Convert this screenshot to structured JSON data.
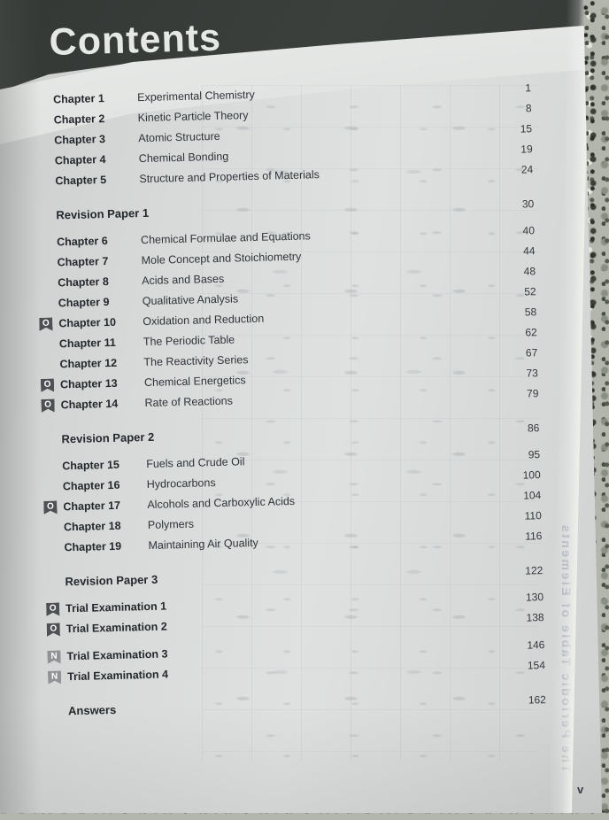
{
  "header": {
    "title": "Contents"
  },
  "page_label": "v",
  "show_through": {
    "vertical_text": "The Periodic Table of Elements"
  },
  "colors": {
    "banner": "#3c403d",
    "banner_text": "#e6e8e5",
    "page": "#d7dad9",
    "granite": "#b2b6ad",
    "badge_o": "#4d5154",
    "badge_n": "#909497",
    "body_text": "#2c3035"
  },
  "toc": {
    "items": [
      {
        "type": "chapter",
        "badge": null,
        "label": "Chapter 1",
        "title": "Experimental Chemistry",
        "page": "1"
      },
      {
        "type": "chapter",
        "badge": null,
        "label": "Chapter 2",
        "title": "Kinetic Particle Theory",
        "page": "8"
      },
      {
        "type": "chapter",
        "badge": null,
        "label": "Chapter 3",
        "title": "Atomic Structure",
        "page": "15"
      },
      {
        "type": "chapter",
        "badge": null,
        "label": "Chapter 4",
        "title": "Chemical Bonding",
        "page": "19"
      },
      {
        "type": "chapter",
        "badge": null,
        "label": "Chapter 5",
        "title": "Structure and Properties of Materials",
        "page": "24"
      },
      {
        "type": "section",
        "badge": null,
        "label": "Revision Paper 1",
        "title": "",
        "page": "30"
      },
      {
        "type": "chapter",
        "badge": null,
        "label": "Chapter 6",
        "title": "Chemical Formulae and Equations",
        "page": "40"
      },
      {
        "type": "chapter",
        "badge": null,
        "label": "Chapter 7",
        "title": "Mole Concept and Stoichiometry",
        "page": "44"
      },
      {
        "type": "chapter",
        "badge": null,
        "label": "Chapter 8",
        "title": "Acids and Bases",
        "page": "48"
      },
      {
        "type": "chapter",
        "badge": null,
        "label": "Chapter 9",
        "title": "Qualitative Analysis",
        "page": "52"
      },
      {
        "type": "chapter",
        "badge": "O",
        "label": "Chapter 10",
        "title": "Oxidation and Reduction",
        "page": "58"
      },
      {
        "type": "chapter",
        "badge": null,
        "label": "Chapter 11",
        "title": "The Periodic Table",
        "page": "62"
      },
      {
        "type": "chapter",
        "badge": null,
        "label": "Chapter 12",
        "title": "The Reactivity Series",
        "page": "67"
      },
      {
        "type": "chapter",
        "badge": "O",
        "label": "Chapter 13",
        "title": "Chemical Energetics",
        "page": "73"
      },
      {
        "type": "chapter",
        "badge": "O",
        "label": "Chapter 14",
        "title": "Rate of Reactions",
        "page": "79"
      },
      {
        "type": "section",
        "badge": null,
        "label": "Revision Paper 2",
        "title": "",
        "page": "86"
      },
      {
        "type": "chapter",
        "badge": null,
        "label": "Chapter 15",
        "title": "Fuels and Crude Oil",
        "page": "95"
      },
      {
        "type": "chapter",
        "badge": null,
        "label": "Chapter 16",
        "title": "Hydrocarbons",
        "page": "100"
      },
      {
        "type": "chapter",
        "badge": "O",
        "label": "Chapter 17",
        "title": "Alcohols and Carboxylic Acids",
        "page": "104"
      },
      {
        "type": "chapter",
        "badge": null,
        "label": "Chapter 18",
        "title": "Polymers",
        "page": "110"
      },
      {
        "type": "chapter",
        "badge": null,
        "label": "Chapter 19",
        "title": "Maintaining Air Quality",
        "page": "116"
      },
      {
        "type": "section",
        "badge": null,
        "label": "Revision Paper 3",
        "title": "",
        "page": "122"
      },
      {
        "type": "exam",
        "badge": "O",
        "label": "Trial Examination 1",
        "title": "",
        "page": "130"
      },
      {
        "type": "exam",
        "badge": "O",
        "label": "Trial Examination 2",
        "title": "",
        "page": "138"
      },
      {
        "type": "exam",
        "badge": "N",
        "label": "Trial Examination 3",
        "title": "",
        "new_group": true,
        "page": "146"
      },
      {
        "type": "exam",
        "badge": "N",
        "label": "Trial Examination 4",
        "title": "",
        "page": "154"
      },
      {
        "type": "section",
        "badge": null,
        "label": "Answers",
        "title": "",
        "page": "162"
      }
    ]
  }
}
